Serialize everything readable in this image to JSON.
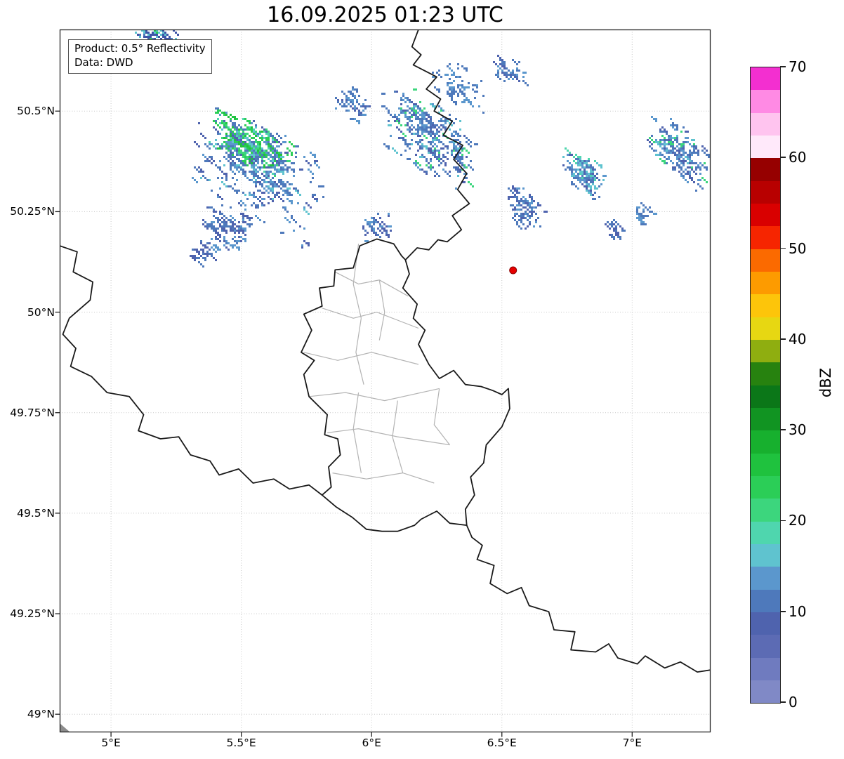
{
  "title": "16.09.2025 01:23 UTC",
  "info_box": {
    "line1": "Product: 0.5° Reflectivity",
    "line2": "Data: DWD"
  },
  "colorbar": {
    "label": "dBZ",
    "min": 0,
    "max": 70,
    "ticks": [
      0,
      10,
      20,
      30,
      40,
      50,
      60,
      70
    ],
    "colors": [
      "#8089c6",
      "#6f7bbf",
      "#5c6bb4",
      "#4f63ae",
      "#4e79bb",
      "#5b97cd",
      "#5fc3cf",
      "#4fd6ae",
      "#3cd67d",
      "#2bce57",
      "#1fc23e",
      "#17b02e",
      "#119422",
      "#0b7718",
      "#27820f",
      "#8fae10",
      "#e7d712",
      "#fdc50a",
      "#fd9b00",
      "#fb6a00",
      "#f62500",
      "#d90000",
      "#b80000",
      "#960000",
      "#ffe9fa",
      "#ffc4ef",
      "#ff8ae4",
      "#f32fd0"
    ]
  },
  "axes": {
    "lon_min": 4.803,
    "lon_max": 7.301,
    "lat_min": 48.955,
    "lat_max": 50.703,
    "x_ticks": [
      {
        "value": 5.0,
        "label": "5°E"
      },
      {
        "value": 5.5,
        "label": "5.5°E"
      },
      {
        "value": 6.0,
        "label": "6°E"
      },
      {
        "value": 6.5,
        "label": "6.5°E"
      },
      {
        "value": 7.0,
        "label": "7°E"
      }
    ],
    "y_ticks": [
      {
        "value": 50.5,
        "label": "50.5°N"
      },
      {
        "value": 50.25,
        "label": "50.25°N"
      },
      {
        "value": 50.0,
        "label": "50°N"
      },
      {
        "value": 49.75,
        "label": "49.75°N"
      },
      {
        "value": 49.5,
        "label": "49.5°N"
      },
      {
        "value": 49.25,
        "label": "49.25°N"
      },
      {
        "value": 49.0,
        "label": "49°N"
      }
    ]
  },
  "colors": {
    "background": "#ffffff",
    "grid": "#c9c9c9",
    "country_border": "#1a1a1a",
    "canton_border": "#b3b3b3",
    "frame": "#222222",
    "station_fill": "#e60000",
    "station_edge": "#8b0000",
    "corner_fragment": "#8c8c8c",
    "text": "#000000"
  },
  "map": {
    "station_marker": {
      "lon": 6.543,
      "lat": 50.104
    },
    "borders": {
      "belgium_germany": [
        [
          6.18,
          50.703
        ],
        [
          6.155,
          50.66
        ],
        [
          6.19,
          50.64
        ],
        [
          6.16,
          50.615
        ],
        [
          6.25,
          50.585
        ],
        [
          6.21,
          50.555
        ],
        [
          6.265,
          50.53
        ],
        [
          6.24,
          50.5
        ],
        [
          6.31,
          50.475
        ],
        [
          6.275,
          50.44
        ],
        [
          6.35,
          50.415
        ],
        [
          6.315,
          50.38
        ],
        [
          6.365,
          50.345
        ],
        [
          6.33,
          50.305
        ],
        [
          6.375,
          50.27
        ],
        [
          6.31,
          50.24
        ],
        [
          6.345,
          50.205
        ],
        [
          6.29,
          50.175
        ],
        [
          6.255,
          50.18
        ],
        [
          6.22,
          50.155
        ],
        [
          6.175,
          50.16
        ],
        [
          6.13,
          50.13
        ]
      ],
      "luxembourg": [
        [
          6.13,
          50.13
        ],
        [
          6.145,
          50.095
        ],
        [
          6.12,
          50.06
        ],
        [
          6.175,
          50.02
        ],
        [
          6.16,
          49.985
        ],
        [
          6.205,
          49.955
        ],
        [
          6.18,
          49.92
        ],
        [
          6.22,
          49.87
        ],
        [
          6.26,
          49.835
        ],
        [
          6.315,
          49.855
        ],
        [
          6.36,
          49.82
        ],
        [
          6.42,
          49.815
        ],
        [
          6.465,
          49.805
        ],
        [
          6.5,
          49.795
        ],
        [
          6.525,
          49.81
        ],
        [
          6.53,
          49.76
        ],
        [
          6.5,
          49.715
        ],
        [
          6.44,
          49.67
        ],
        [
          6.43,
          49.625
        ],
        [
          6.38,
          49.59
        ],
        [
          6.395,
          49.545
        ],
        [
          6.36,
          49.51
        ],
        [
          6.365,
          49.47
        ],
        [
          6.3,
          49.475
        ],
        [
          6.25,
          49.505
        ],
        [
          6.19,
          49.485
        ],
        [
          6.165,
          49.47
        ],
        [
          6.1,
          49.455
        ],
        [
          6.04,
          49.455
        ],
        [
          5.98,
          49.46
        ],
        [
          5.925,
          49.49
        ],
        [
          5.865,
          49.515
        ],
        [
          5.81,
          49.545
        ],
        [
          5.845,
          49.565
        ],
        [
          5.835,
          49.615
        ],
        [
          5.88,
          49.645
        ],
        [
          5.87,
          49.685
        ],
        [
          5.82,
          49.695
        ],
        [
          5.83,
          49.745
        ],
        [
          5.76,
          49.79
        ],
        [
          5.74,
          49.845
        ],
        [
          5.78,
          49.88
        ],
        [
          5.73,
          49.9
        ],
        [
          5.77,
          49.955
        ],
        [
          5.74,
          49.995
        ],
        [
          5.81,
          50.015
        ],
        [
          5.8,
          50.06
        ],
        [
          5.855,
          50.065
        ],
        [
          5.86,
          50.105
        ],
        [
          5.93,
          50.11
        ],
        [
          5.955,
          50.165
        ],
        [
          6.02,
          50.182
        ],
        [
          6.085,
          50.17
        ],
        [
          6.115,
          50.14
        ],
        [
          6.13,
          50.13
        ]
      ],
      "france_belgium": [
        [
          4.803,
          50.165
        ],
        [
          4.87,
          50.15
        ],
        [
          4.855,
          50.1
        ],
        [
          4.93,
          50.075
        ],
        [
          4.92,
          50.03
        ],
        [
          4.84,
          49.985
        ],
        [
          4.815,
          49.945
        ],
        [
          4.865,
          49.91
        ],
        [
          4.845,
          49.865
        ],
        [
          4.925,
          49.84
        ],
        [
          4.985,
          49.8
        ],
        [
          5.07,
          49.79
        ],
        [
          5.125,
          49.745
        ],
        [
          5.105,
          49.705
        ],
        [
          5.19,
          49.685
        ],
        [
          5.26,
          49.69
        ],
        [
          5.305,
          49.645
        ],
        [
          5.38,
          49.63
        ],
        [
          5.415,
          49.595
        ],
        [
          5.49,
          49.61
        ],
        [
          5.545,
          49.575
        ],
        [
          5.625,
          49.585
        ],
        [
          5.685,
          49.56
        ],
        [
          5.76,
          49.57
        ],
        [
          5.81,
          49.545
        ]
      ],
      "france_germany": [
        [
          6.365,
          49.47
        ],
        [
          6.385,
          49.44
        ],
        [
          6.425,
          49.42
        ],
        [
          6.405,
          49.385
        ],
        [
          6.47,
          49.37
        ],
        [
          6.455,
          49.325
        ],
        [
          6.52,
          49.3
        ],
        [
          6.575,
          49.315
        ],
        [
          6.605,
          49.27
        ],
        [
          6.68,
          49.255
        ],
        [
          6.7,
          49.21
        ],
        [
          6.78,
          49.205
        ],
        [
          6.765,
          49.16
        ],
        [
          6.86,
          49.155
        ],
        [
          6.91,
          49.175
        ],
        [
          6.945,
          49.14
        ],
        [
          7.02,
          49.125
        ],
        [
          7.05,
          49.145
        ],
        [
          7.125,
          49.115
        ],
        [
          7.185,
          49.13
        ],
        [
          7.25,
          49.105
        ],
        [
          7.301,
          49.11
        ]
      ]
    },
    "cantons": [
      [
        [
          5.86,
          50.1
        ],
        [
          5.95,
          50.07
        ],
        [
          6.03,
          50.08
        ],
        [
          6.14,
          50.04
        ]
      ],
      [
        [
          5.81,
          50.01
        ],
        [
          5.93,
          49.985
        ],
        [
          6.02,
          50.0
        ],
        [
          6.18,
          49.96
        ]
      ],
      [
        [
          5.95,
          50.17
        ],
        [
          5.93,
          50.07
        ],
        [
          5.96,
          49.985
        ]
      ],
      [
        [
          6.03,
          50.08
        ],
        [
          6.05,
          50.0
        ],
        [
          6.03,
          49.93
        ]
      ],
      [
        [
          5.74,
          49.9
        ],
        [
          5.87,
          49.88
        ],
        [
          6.0,
          49.9
        ],
        [
          6.18,
          49.87
        ]
      ],
      [
        [
          5.96,
          49.985
        ],
        [
          5.94,
          49.9
        ],
        [
          5.97,
          49.82
        ]
      ],
      [
        [
          5.76,
          49.79
        ],
        [
          5.9,
          49.8
        ],
        [
          6.05,
          49.78
        ],
        [
          6.26,
          49.81
        ]
      ],
      [
        [
          5.83,
          49.7
        ],
        [
          5.95,
          49.71
        ],
        [
          6.1,
          49.69
        ],
        [
          6.3,
          49.67
        ]
      ],
      [
        [
          5.95,
          49.8
        ],
        [
          5.93,
          49.71
        ],
        [
          5.96,
          49.6
        ]
      ],
      [
        [
          6.1,
          49.78
        ],
        [
          6.08,
          49.69
        ],
        [
          6.12,
          49.6
        ]
      ],
      [
        [
          5.85,
          49.6
        ],
        [
          5.98,
          49.585
        ],
        [
          6.12,
          49.6
        ],
        [
          6.24,
          49.575
        ]
      ],
      [
        [
          6.26,
          49.81
        ],
        [
          6.24,
          49.72
        ],
        [
          6.3,
          49.67
        ]
      ]
    ],
    "echo_clusters": [
      {
        "name": "top-left-streak",
        "lon": 5.17,
        "lat": 50.685,
        "rlon": 0.1,
        "rlat": 0.028,
        "rot": -10,
        "n": 70,
        "palette": [
          [
            "#3d55a8",
            5
          ],
          [
            "#4e79bb",
            2
          ],
          [
            "#2bce57",
            1
          ],
          [
            "#5fc3cf",
            1
          ]
        ]
      },
      {
        "name": "main-storm-core",
        "lon": 5.52,
        "lat": 50.42,
        "rlon": 0.17,
        "rlat": 0.062,
        "rot": -18,
        "n": 240,
        "palette": [
          [
            "#2bce57",
            4
          ],
          [
            "#1fc23e",
            3
          ],
          [
            "#3cd67d",
            2
          ],
          [
            "#4fd6ae",
            2
          ],
          [
            "#5fc3cf",
            1
          ]
        ]
      },
      {
        "name": "main-storm-fringe",
        "lon": 5.56,
        "lat": 50.35,
        "rlon": 0.27,
        "rlat": 0.13,
        "rot": -20,
        "n": 330,
        "palette": [
          [
            "#4e79bb",
            4
          ],
          [
            "#5b97cd",
            3
          ],
          [
            "#4f63ae",
            2
          ],
          [
            "#5fc3cf",
            1
          ]
        ]
      },
      {
        "name": "south-specks",
        "lon": 5.44,
        "lat": 50.21,
        "rlon": 0.11,
        "rlat": 0.06,
        "rot": -10,
        "n": 100,
        "palette": [
          [
            "#4f63ae",
            3
          ],
          [
            "#4e79bb",
            3
          ],
          [
            "#5b97cd",
            2
          ]
        ]
      },
      {
        "name": "southwest-dots",
        "lon": 5.35,
        "lat": 50.15,
        "rlon": 0.05,
        "rlat": 0.035,
        "rot": 0,
        "n": 28,
        "palette": [
          [
            "#4f63ae",
            2
          ],
          [
            "#4e79bb",
            1
          ]
        ]
      },
      {
        "name": "gap-specks",
        "lon": 5.93,
        "lat": 50.52,
        "rlon": 0.08,
        "rlat": 0.05,
        "rot": -20,
        "n": 50,
        "palette": [
          [
            "#4e79bb",
            3
          ],
          [
            "#5b97cd",
            2
          ],
          [
            "#4f63ae",
            1
          ]
        ]
      },
      {
        "name": "mid-cluster",
        "lon": 6.22,
        "lat": 50.44,
        "rlon": 0.21,
        "rlat": 0.095,
        "rot": -25,
        "n": 300,
        "palette": [
          [
            "#4e79bb",
            4
          ],
          [
            "#5b97cd",
            3
          ],
          [
            "#4f63ae",
            2
          ],
          [
            "#5fc3cf",
            1
          ],
          [
            "#3cd67d",
            1
          ]
        ]
      },
      {
        "name": "mid-top-specks",
        "lon": 6.33,
        "lat": 50.57,
        "rlon": 0.12,
        "rlat": 0.055,
        "rot": -15,
        "n": 60,
        "palette": [
          [
            "#4e79bb",
            3
          ],
          [
            "#5b97cd",
            2
          ]
        ]
      },
      {
        "name": "north-specks",
        "lon": 6.53,
        "lat": 50.6,
        "rlon": 0.07,
        "rlat": 0.04,
        "rot": 0,
        "n": 35,
        "palette": [
          [
            "#4e79bb",
            3
          ],
          [
            "#5b97cd",
            2
          ],
          [
            "#4f63ae",
            1
          ]
        ]
      },
      {
        "name": "east-central-specks",
        "lon": 6.58,
        "lat": 50.26,
        "rlon": 0.085,
        "rlat": 0.05,
        "rot": -30,
        "n": 75,
        "palette": [
          [
            "#4f63ae",
            3
          ],
          [
            "#4e79bb",
            2
          ],
          [
            "#5b97cd",
            1
          ]
        ]
      },
      {
        "name": "east-blob",
        "lon": 6.81,
        "lat": 50.35,
        "rlon": 0.09,
        "rlat": 0.052,
        "rot": -25,
        "n": 120,
        "palette": [
          [
            "#4e79bb",
            3
          ],
          [
            "#5b97cd",
            2
          ],
          [
            "#5fc3cf",
            2
          ],
          [
            "#4fd6ae",
            1
          ],
          [
            "#4f63ae",
            1
          ]
        ]
      },
      {
        "name": "east-small-dots",
        "lon": 6.93,
        "lat": 50.205,
        "rlon": 0.045,
        "rlat": 0.028,
        "rot": 0,
        "n": 22,
        "palette": [
          [
            "#4e79bb",
            2
          ],
          [
            "#4f63ae",
            1
          ]
        ]
      },
      {
        "name": "far-east-dots",
        "lon": 7.04,
        "lat": 50.24,
        "rlon": 0.045,
        "rlat": 0.028,
        "rot": 0,
        "n": 22,
        "palette": [
          [
            "#4e79bb",
            2
          ],
          [
            "#5b97cd",
            1
          ]
        ]
      },
      {
        "name": "far-right-streaks",
        "lon": 7.18,
        "lat": 50.4,
        "rlon": 0.13,
        "rlat": 0.068,
        "rot": -30,
        "n": 160,
        "palette": [
          [
            "#4e79bb",
            4
          ],
          [
            "#5b97cd",
            3
          ],
          [
            "#4f63ae",
            2
          ],
          [
            "#5fc3cf",
            1
          ],
          [
            "#3cd67d",
            1
          ]
        ]
      },
      {
        "name": "border-pocket-specks",
        "lon": 6.02,
        "lat": 50.215,
        "rlon": 0.06,
        "rlat": 0.04,
        "rot": 0,
        "n": 40,
        "palette": [
          [
            "#4f63ae",
            3
          ],
          [
            "#4e79bb",
            2
          ],
          [
            "#5b97cd",
            1
          ]
        ]
      }
    ]
  }
}
